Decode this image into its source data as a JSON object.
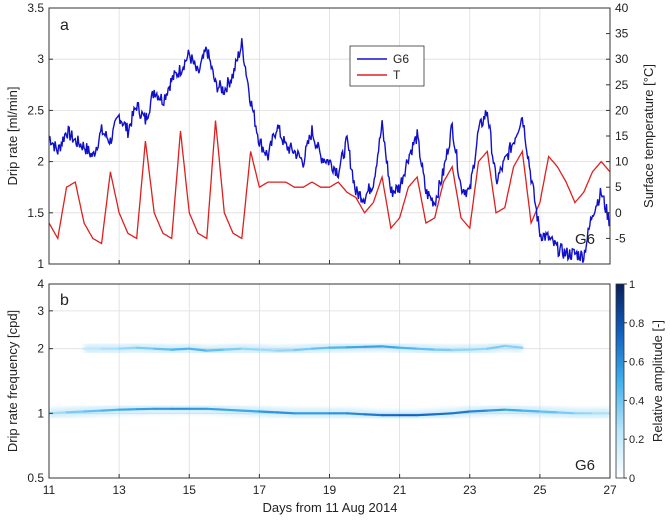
{
  "colors": {
    "g6": "#1010c8",
    "temperature": "#dd2020",
    "axis": "#333333",
    "grid": "#dddddd",
    "heat_max": "#0a1f5c",
    "heat_mid": "#1a90e0",
    "heat_min": "#ffffff"
  },
  "chart_data": [
    {
      "type": "line",
      "panel_label": "a",
      "xlabel": "",
      "ylabel": "Drip rate [ml/min]",
      "y2label": "Surface temperature [°C]",
      "xlim": [
        11,
        27
      ],
      "ylim": [
        1,
        3.5
      ],
      "y2lim": [
        -10,
        40
      ],
      "xticks": [
        11,
        13,
        15,
        17,
        19,
        21,
        23,
        25,
        27
      ],
      "yticks": [
        1,
        1.5,
        2,
        2.5,
        3,
        3.5
      ],
      "y2ticks": [
        -5,
        0,
        5,
        10,
        15,
        20,
        25,
        30,
        35,
        40
      ],
      "grid": true,
      "legend_position": "top-center",
      "annotation": "G6",
      "series": [
        {
          "name": "G6",
          "axis": "left",
          "x": [
            11.0,
            11.25,
            11.5,
            11.75,
            12.0,
            12.25,
            12.5,
            12.75,
            13.0,
            13.25,
            13.5,
            13.75,
            14.0,
            14.25,
            14.5,
            14.75,
            15.0,
            15.25,
            15.5,
            15.75,
            16.0,
            16.25,
            16.5,
            16.75,
            17.0,
            17.25,
            17.5,
            17.75,
            18.0,
            18.25,
            18.5,
            18.75,
            19.0,
            19.25,
            19.5,
            19.75,
            20.0,
            20.25,
            20.5,
            20.75,
            21.0,
            21.25,
            21.5,
            21.75,
            22.0,
            22.25,
            22.5,
            22.75,
            23.0,
            23.25,
            23.5,
            23.75,
            24.0,
            24.25,
            24.5,
            24.75,
            25.0,
            25.25,
            25.5,
            25.75,
            26.0,
            26.25,
            26.5,
            26.75,
            27.0
          ],
          "y": [
            2.25,
            2.1,
            2.3,
            2.2,
            2.15,
            2.05,
            2.3,
            2.2,
            2.45,
            2.3,
            2.55,
            2.4,
            2.7,
            2.6,
            2.8,
            2.9,
            3.05,
            2.85,
            3.1,
            2.75,
            2.7,
            2.85,
            3.15,
            2.6,
            2.2,
            2.05,
            2.35,
            2.15,
            2.1,
            2.0,
            2.3,
            2.05,
            2.0,
            1.9,
            2.2,
            1.7,
            1.65,
            1.8,
            2.35,
            1.7,
            1.75,
            2.05,
            2.25,
            1.7,
            1.6,
            1.9,
            2.35,
            1.75,
            1.7,
            2.3,
            2.5,
            1.8,
            2.0,
            2.2,
            2.45,
            1.85,
            1.3,
            1.25,
            1.15,
            1.1,
            1.1,
            1.08,
            1.5,
            1.7,
            1.4
          ],
          "style": "solid"
        },
        {
          "name": "T",
          "axis": "right",
          "x": [
            11.0,
            11.25,
            11.5,
            11.75,
            12.0,
            12.25,
            12.5,
            12.75,
            13.0,
            13.25,
            13.5,
            13.75,
            14.0,
            14.25,
            14.5,
            14.75,
            15.0,
            15.25,
            15.5,
            15.75,
            16.0,
            16.25,
            16.5,
            16.75,
            17.0,
            17.25,
            17.5,
            17.75,
            18.0,
            18.25,
            18.5,
            18.75,
            19.0,
            19.25,
            19.5,
            19.75,
            20.0,
            20.25,
            20.5,
            20.75,
            21.0,
            21.25,
            21.5,
            21.75,
            22.0,
            22.25,
            22.5,
            22.75,
            23.0,
            23.25,
            23.5,
            23.75,
            24.0,
            24.25,
            24.5,
            24.75,
            25.0,
            25.25,
            25.5,
            25.75,
            26.0,
            26.25,
            26.5,
            26.75,
            27.0
          ],
          "y": [
            -2,
            -5,
            5,
            6,
            -2,
            -5,
            -6,
            8,
            0,
            -4,
            -5,
            14,
            0,
            -4,
            -5,
            16,
            0,
            -4,
            -5,
            18,
            0,
            -4,
            -5,
            12,
            5,
            6,
            6,
            6,
            5,
            5,
            6,
            5,
            5,
            6,
            4,
            3,
            0,
            2,
            7,
            -3,
            -1,
            5,
            7,
            -2,
            -1,
            6,
            9,
            -1,
            -3,
            10,
            12,
            0,
            1,
            9,
            12,
            -2,
            2,
            11,
            9,
            6,
            2,
            4,
            8,
            10,
            8
          ],
          "style": "solid"
        }
      ]
    },
    {
      "type": "heatmap",
      "panel_label": "b",
      "xlabel": "Days from 11 Aug 2014",
      "ylabel": "Drip rate frequency [cpd]",
      "colorbar_label": "Relative amplitude [-]",
      "xlim": [
        11,
        27
      ],
      "ylim": [
        0.5,
        4
      ],
      "yscale": "log",
      "xticks": [
        11,
        13,
        15,
        17,
        19,
        21,
        23,
        25,
        27
      ],
      "yticks": [
        0.5,
        1,
        2,
        3,
        4
      ],
      "colorbar_ticks": [
        0,
        0.2,
        0.4,
        0.6,
        0.8,
        1
      ],
      "colorbar_range": [
        0,
        1
      ],
      "annotation": "G6",
      "ridges": [
        {
          "x": [
            11.0,
            11.5,
            12.0,
            12.5,
            13.0,
            13.5,
            14.0,
            14.5,
            15.0,
            15.5,
            16.0,
            16.5,
            17.0,
            17.5,
            18.0,
            18.5,
            19.0,
            19.5,
            20.0,
            20.5,
            21.0,
            21.5,
            22.0,
            22.5,
            23.0,
            23.5,
            24.0,
            24.5,
            25.0,
            25.5,
            26.0,
            26.5,
            27.0
          ],
          "freq": [
            1.0,
            1.01,
            1.02,
            1.03,
            1.04,
            1.045,
            1.05,
            1.05,
            1.05,
            1.05,
            1.04,
            1.03,
            1.02,
            1.01,
            1.0,
            1.0,
            1.0,
            1.0,
            0.99,
            0.98,
            0.98,
            0.98,
            0.99,
            1.0,
            1.02,
            1.03,
            1.04,
            1.03,
            1.02,
            1.01,
            1.0,
            1.0,
            1.0
          ],
          "amplitude": [
            0.25,
            0.35,
            0.4,
            0.45,
            0.5,
            0.55,
            0.55,
            0.6,
            0.6,
            0.55,
            0.55,
            0.5,
            0.55,
            0.6,
            0.6,
            0.55,
            0.6,
            0.6,
            0.65,
            0.7,
            0.75,
            0.75,
            0.7,
            0.7,
            0.65,
            0.6,
            0.55,
            0.5,
            0.45,
            0.4,
            0.35,
            0.3,
            0.25
          ]
        },
        {
          "x": [
            12.0,
            12.5,
            13.0,
            13.5,
            14.0,
            14.5,
            15.0,
            15.5,
            16.0,
            16.5,
            17.0,
            17.5,
            18.0,
            18.5,
            19.0,
            19.5,
            20.0,
            20.5,
            21.0,
            21.5,
            22.0,
            22.5,
            23.0,
            23.5,
            24.0,
            24.5
          ],
          "freq": [
            2.0,
            2.0,
            2.0,
            2.02,
            2.0,
            1.98,
            2.0,
            1.96,
            1.98,
            2.0,
            1.98,
            1.96,
            1.97,
            2.0,
            2.02,
            2.03,
            2.04,
            2.05,
            2.02,
            2.0,
            1.98,
            1.97,
            1.98,
            2.0,
            2.06,
            2.02
          ],
          "amplitude": [
            0.2,
            0.25,
            0.3,
            0.35,
            0.4,
            0.45,
            0.5,
            0.45,
            0.4,
            0.35,
            0.3,
            0.3,
            0.35,
            0.4,
            0.45,
            0.5,
            0.55,
            0.55,
            0.5,
            0.45,
            0.4,
            0.35,
            0.3,
            0.35,
            0.4,
            0.3
          ]
        }
      ]
    }
  ]
}
